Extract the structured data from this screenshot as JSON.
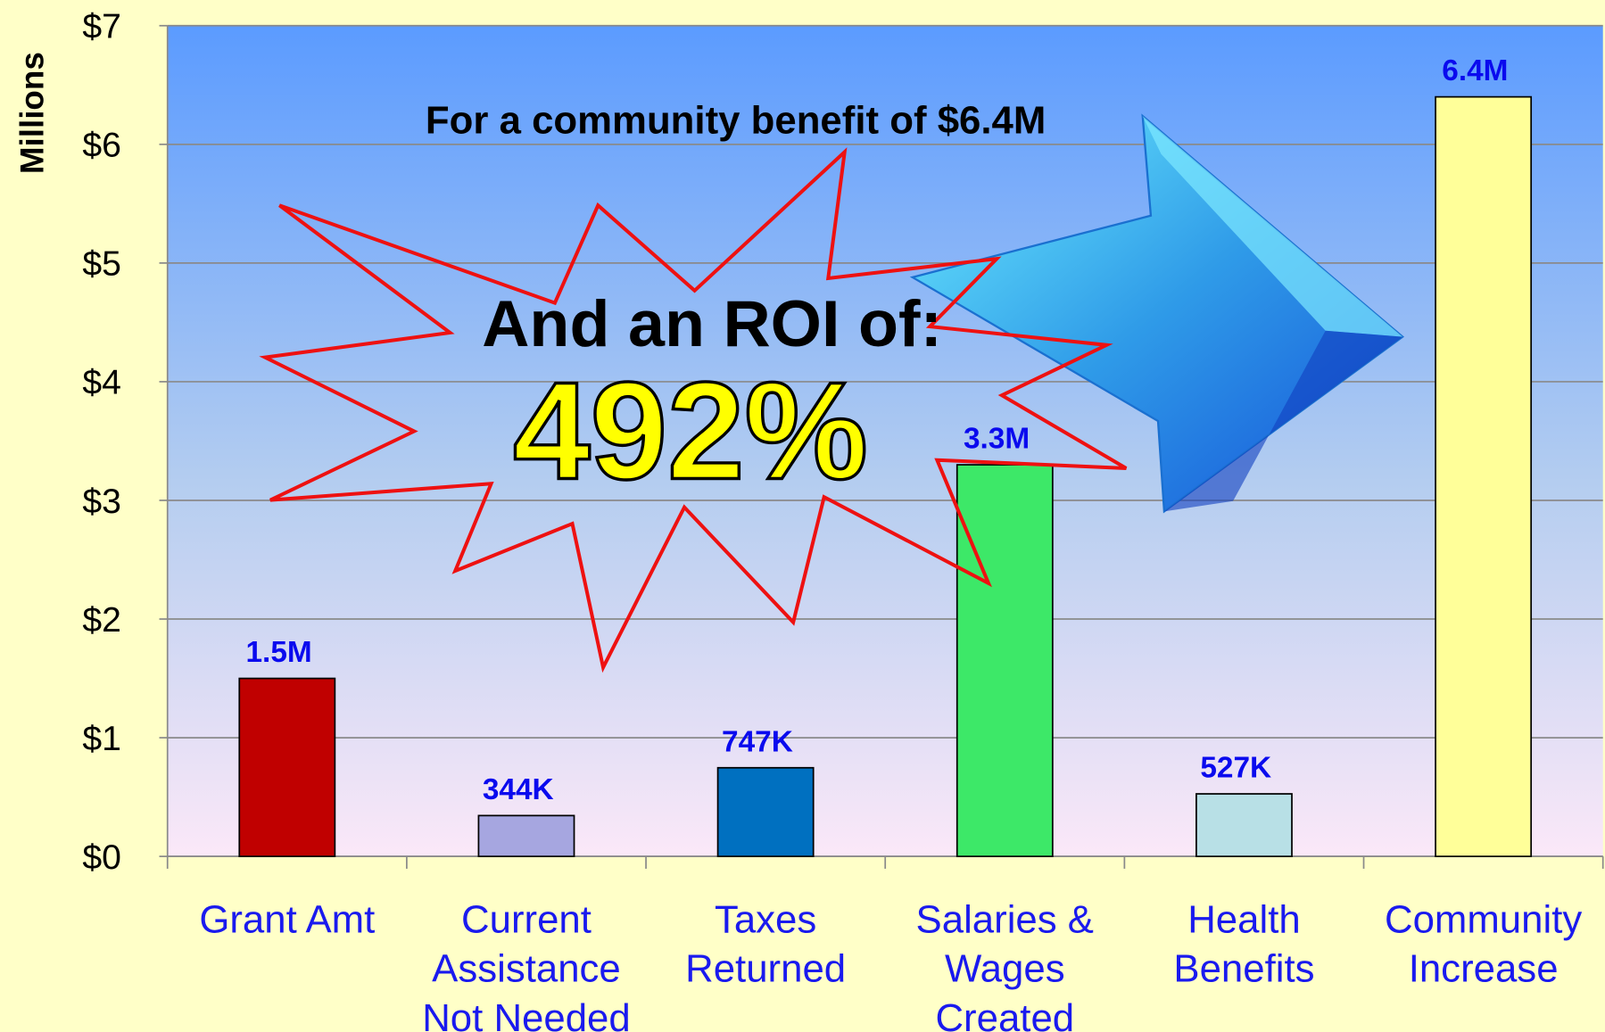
{
  "chart_data": {
    "type": "bar",
    "ylabel": "Millions",
    "categories": [
      "Grant Amt",
      "Current\nAssistance\nNot Needed",
      "Taxes\nReturned",
      "Salaries &\nWages\nCreated",
      "Health\nBenefits",
      "Community\nIncrease"
    ],
    "values": [
      1.5,
      0.344,
      0.747,
      3.3,
      0.527,
      6.4
    ],
    "value_labels": [
      "1.5M",
      "344K",
      "747K",
      "3.3M",
      "527K",
      "6.4M"
    ],
    "colors": [
      "#c00000",
      "#a6a6e0",
      "#0070c0",
      "#3de868",
      "#b8e0e6",
      "#ffff99"
    ],
    "ylim": [
      0,
      7
    ],
    "yticks": [
      {
        "value": 0,
        "label": "$0"
      },
      {
        "value": 1,
        "label": "$1"
      },
      {
        "value": 2,
        "label": "$2"
      },
      {
        "value": 3,
        "label": "$3"
      },
      {
        "value": 4,
        "label": "$4"
      },
      {
        "value": 5,
        "label": "$5"
      },
      {
        "value": 6,
        "label": "$6"
      },
      {
        "value": 7,
        "label": "$7"
      }
    ],
    "grid": true,
    "annotations": [
      "For a community benefit of $6.4M",
      "And an ROI of:",
      "492%"
    ]
  }
}
